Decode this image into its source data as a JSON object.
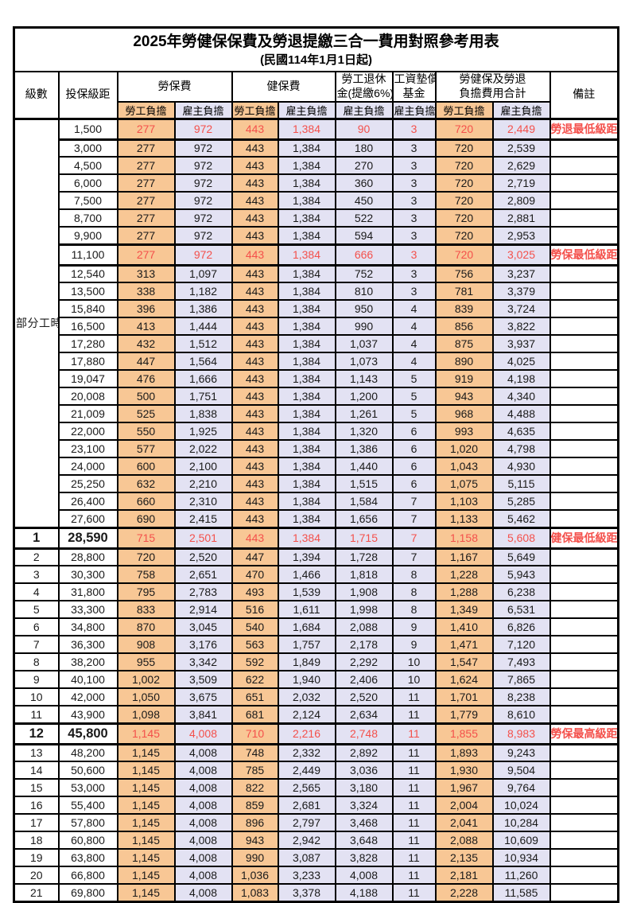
{
  "title": "2025年勞健保保費及勞退提繳三合一費用對照參考用表",
  "subtitle": "(民國114年1月1日起)",
  "colors": {
    "accent_orange": "#F8C795",
    "accent_lavender": "#E3E2F3",
    "highlight_red": "#F4504B"
  },
  "header": {
    "level": "級數",
    "bracket": "投保級距",
    "labor_fee": "勞保費",
    "health_fee": "健保費",
    "pension_line1": "勞工退休",
    "pension_line2": "金(提繳6%)",
    "wage_fund_line1": "工資墊償",
    "wage_fund_line2": "基金",
    "total_line1": "勞健保及勞退",
    "total_line2": "負擔費用合計",
    "note": "備註",
    "employee": "勞工負擔",
    "employer": "雇主負擔"
  },
  "part_time_label": "部分工時",
  "part_time_rowspan": 23,
  "rows": [
    {
      "level": "",
      "bracket": "1,500",
      "values": [
        "277",
        "972",
        "443",
        "1,384",
        "90",
        "3",
        "720",
        "2,449"
      ],
      "note": "勞退最低級距",
      "highlight": true,
      "emphasis": false
    },
    {
      "level": "",
      "bracket": "3,000",
      "values": [
        "277",
        "972",
        "443",
        "1,384",
        "180",
        "3",
        "720",
        "2,539"
      ],
      "note": "",
      "highlight": false,
      "emphasis": false
    },
    {
      "level": "",
      "bracket": "4,500",
      "values": [
        "277",
        "972",
        "443",
        "1,384",
        "270",
        "3",
        "720",
        "2,629"
      ],
      "note": "",
      "highlight": false,
      "emphasis": false
    },
    {
      "level": "",
      "bracket": "6,000",
      "values": [
        "277",
        "972",
        "443",
        "1,384",
        "360",
        "3",
        "720",
        "2,719"
      ],
      "note": "",
      "highlight": false,
      "emphasis": false
    },
    {
      "level": "",
      "bracket": "7,500",
      "values": [
        "277",
        "972",
        "443",
        "1,384",
        "450",
        "3",
        "720",
        "2,809"
      ],
      "note": "",
      "highlight": false,
      "emphasis": false
    },
    {
      "level": "",
      "bracket": "8,700",
      "values": [
        "277",
        "972",
        "443",
        "1,384",
        "522",
        "3",
        "720",
        "2,881"
      ],
      "note": "",
      "highlight": false,
      "emphasis": false
    },
    {
      "level": "",
      "bracket": "9,900",
      "values": [
        "277",
        "972",
        "443",
        "1,384",
        "594",
        "3",
        "720",
        "2,953"
      ],
      "note": "",
      "highlight": false,
      "emphasis": false
    },
    {
      "level": "",
      "bracket": "11,100",
      "values": [
        "277",
        "972",
        "443",
        "1,384",
        "666",
        "3",
        "720",
        "3,025"
      ],
      "note": "勞保最低級距",
      "highlight": true,
      "emphasis": false
    },
    {
      "level": "",
      "bracket": "12,540",
      "values": [
        "313",
        "1,097",
        "443",
        "1,384",
        "752",
        "3",
        "756",
        "3,237"
      ],
      "note": "",
      "highlight": false,
      "emphasis": false
    },
    {
      "level": "",
      "bracket": "13,500",
      "values": [
        "338",
        "1,182",
        "443",
        "1,384",
        "810",
        "3",
        "781",
        "3,379"
      ],
      "note": "",
      "highlight": false,
      "emphasis": false
    },
    {
      "level": "",
      "bracket": "15,840",
      "values": [
        "396",
        "1,386",
        "443",
        "1,384",
        "950",
        "4",
        "839",
        "3,724"
      ],
      "note": "",
      "highlight": false,
      "emphasis": false
    },
    {
      "level": "",
      "bracket": "16,500",
      "values": [
        "413",
        "1,444",
        "443",
        "1,384",
        "990",
        "4",
        "856",
        "3,822"
      ],
      "note": "",
      "highlight": false,
      "emphasis": false
    },
    {
      "level": "",
      "bracket": "17,280",
      "values": [
        "432",
        "1,512",
        "443",
        "1,384",
        "1,037",
        "4",
        "875",
        "3,937"
      ],
      "note": "",
      "highlight": false,
      "emphasis": false
    },
    {
      "level": "",
      "bracket": "17,880",
      "values": [
        "447",
        "1,564",
        "443",
        "1,384",
        "1,073",
        "4",
        "890",
        "4,025"
      ],
      "note": "",
      "highlight": false,
      "emphasis": false
    },
    {
      "level": "",
      "bracket": "19,047",
      "values": [
        "476",
        "1,666",
        "443",
        "1,384",
        "1,143",
        "5",
        "919",
        "4,198"
      ],
      "note": "",
      "highlight": false,
      "emphasis": false
    },
    {
      "level": "",
      "bracket": "20,008",
      "values": [
        "500",
        "1,751",
        "443",
        "1,384",
        "1,200",
        "5",
        "943",
        "4,340"
      ],
      "note": "",
      "highlight": false,
      "emphasis": false
    },
    {
      "level": "",
      "bracket": "21,009",
      "values": [
        "525",
        "1,838",
        "443",
        "1,384",
        "1,261",
        "5",
        "968",
        "4,488"
      ],
      "note": "",
      "highlight": false,
      "emphasis": false
    },
    {
      "level": "",
      "bracket": "22,000",
      "values": [
        "550",
        "1,925",
        "443",
        "1,384",
        "1,320",
        "6",
        "993",
        "4,635"
      ],
      "note": "",
      "highlight": false,
      "emphasis": false
    },
    {
      "level": "",
      "bracket": "23,100",
      "values": [
        "577",
        "2,022",
        "443",
        "1,384",
        "1,386",
        "6",
        "1,020",
        "4,798"
      ],
      "note": "",
      "highlight": false,
      "emphasis": false
    },
    {
      "level": "",
      "bracket": "24,000",
      "values": [
        "600",
        "2,100",
        "443",
        "1,384",
        "1,440",
        "6",
        "1,043",
        "4,930"
      ],
      "note": "",
      "highlight": false,
      "emphasis": false
    },
    {
      "level": "",
      "bracket": "25,250",
      "values": [
        "632",
        "2,210",
        "443",
        "1,384",
        "1,515",
        "6",
        "1,075",
        "5,115"
      ],
      "note": "",
      "highlight": false,
      "emphasis": false
    },
    {
      "level": "",
      "bracket": "26,400",
      "values": [
        "660",
        "2,310",
        "443",
        "1,384",
        "1,584",
        "7",
        "1,103",
        "5,285"
      ],
      "note": "",
      "highlight": false,
      "emphasis": false
    },
    {
      "level": "",
      "bracket": "27,600",
      "values": [
        "690",
        "2,415",
        "443",
        "1,384",
        "1,656",
        "7",
        "1,133",
        "5,462"
      ],
      "note": "",
      "highlight": false,
      "emphasis": false
    },
    {
      "level": "1",
      "bracket": "28,590",
      "values": [
        "715",
        "2,501",
        "443",
        "1,384",
        "1,715",
        "7",
        "1,158",
        "5,608"
      ],
      "note": "健保最低級距",
      "highlight": true,
      "emphasis": true
    },
    {
      "level": "2",
      "bracket": "28,800",
      "values": [
        "720",
        "2,520",
        "447",
        "1,394",
        "1,728",
        "7",
        "1,167",
        "5,649"
      ],
      "note": "",
      "highlight": false,
      "emphasis": false
    },
    {
      "level": "3",
      "bracket": "30,300",
      "values": [
        "758",
        "2,651",
        "470",
        "1,466",
        "1,818",
        "8",
        "1,228",
        "5,943"
      ],
      "note": "",
      "highlight": false,
      "emphasis": false
    },
    {
      "level": "4",
      "bracket": "31,800",
      "values": [
        "795",
        "2,783",
        "493",
        "1,539",
        "1,908",
        "8",
        "1,288",
        "6,238"
      ],
      "note": "",
      "highlight": false,
      "emphasis": false
    },
    {
      "level": "5",
      "bracket": "33,300",
      "values": [
        "833",
        "2,914",
        "516",
        "1,611",
        "1,998",
        "8",
        "1,349",
        "6,531"
      ],
      "note": "",
      "highlight": false,
      "emphasis": false
    },
    {
      "level": "6",
      "bracket": "34,800",
      "values": [
        "870",
        "3,045",
        "540",
        "1,684",
        "2,088",
        "9",
        "1,410",
        "6,826"
      ],
      "note": "",
      "highlight": false,
      "emphasis": false
    },
    {
      "level": "7",
      "bracket": "36,300",
      "values": [
        "908",
        "3,176",
        "563",
        "1,757",
        "2,178",
        "9",
        "1,471",
        "7,120"
      ],
      "note": "",
      "highlight": false,
      "emphasis": false
    },
    {
      "level": "8",
      "bracket": "38,200",
      "values": [
        "955",
        "3,342",
        "592",
        "1,849",
        "2,292",
        "10",
        "1,547",
        "7,493"
      ],
      "note": "",
      "highlight": false,
      "emphasis": false
    },
    {
      "level": "9",
      "bracket": "40,100",
      "values": [
        "1,002",
        "3,509",
        "622",
        "1,940",
        "2,406",
        "10",
        "1,624",
        "7,865"
      ],
      "note": "",
      "highlight": false,
      "emphasis": false
    },
    {
      "level": "10",
      "bracket": "42,000",
      "values": [
        "1,050",
        "3,675",
        "651",
        "2,032",
        "2,520",
        "11",
        "1,701",
        "8,238"
      ],
      "note": "",
      "highlight": false,
      "emphasis": false
    },
    {
      "level": "11",
      "bracket": "43,900",
      "values": [
        "1,098",
        "3,841",
        "681",
        "2,124",
        "2,634",
        "11",
        "1,779",
        "8,610"
      ],
      "note": "",
      "highlight": false,
      "emphasis": false
    },
    {
      "level": "12",
      "bracket": "45,800",
      "values": [
        "1,145",
        "4,008",
        "710",
        "2,216",
        "2,748",
        "11",
        "1,855",
        "8,983"
      ],
      "note": "勞保最高級距",
      "highlight": true,
      "emphasis": true
    },
    {
      "level": "13",
      "bracket": "48,200",
      "values": [
        "1,145",
        "4,008",
        "748",
        "2,332",
        "2,892",
        "11",
        "1,893",
        "9,243"
      ],
      "note": "",
      "highlight": false,
      "emphasis": false
    },
    {
      "level": "14",
      "bracket": "50,600",
      "values": [
        "1,145",
        "4,008",
        "785",
        "2,449",
        "3,036",
        "11",
        "1,930",
        "9,504"
      ],
      "note": "",
      "highlight": false,
      "emphasis": false
    },
    {
      "level": "15",
      "bracket": "53,000",
      "values": [
        "1,145",
        "4,008",
        "822",
        "2,565",
        "3,180",
        "11",
        "1,967",
        "9,764"
      ],
      "note": "",
      "highlight": false,
      "emphasis": false
    },
    {
      "level": "16",
      "bracket": "55,400",
      "values": [
        "1,145",
        "4,008",
        "859",
        "2,681",
        "3,324",
        "11",
        "2,004",
        "10,024"
      ],
      "note": "",
      "highlight": false,
      "emphasis": false
    },
    {
      "level": "17",
      "bracket": "57,800",
      "values": [
        "1,145",
        "4,008",
        "896",
        "2,797",
        "3,468",
        "11",
        "2,041",
        "10,284"
      ],
      "note": "",
      "highlight": false,
      "emphasis": false
    },
    {
      "level": "18",
      "bracket": "60,800",
      "values": [
        "1,145",
        "4,008",
        "943",
        "2,942",
        "3,648",
        "11",
        "2,088",
        "10,609"
      ],
      "note": "",
      "highlight": false,
      "emphasis": false
    },
    {
      "level": "19",
      "bracket": "63,800",
      "values": [
        "1,145",
        "4,008",
        "990",
        "3,087",
        "3,828",
        "11",
        "2,135",
        "10,934"
      ],
      "note": "",
      "highlight": false,
      "emphasis": false
    },
    {
      "level": "20",
      "bracket": "66,800",
      "values": [
        "1,145",
        "4,008",
        "1,036",
        "3,233",
        "4,008",
        "11",
        "2,181",
        "11,260"
      ],
      "note": "",
      "highlight": false,
      "emphasis": false
    },
    {
      "level": "21",
      "bracket": "69,800",
      "values": [
        "1,145",
        "4,008",
        "1,083",
        "3,378",
        "4,188",
        "11",
        "2,228",
        "11,585"
      ],
      "note": "",
      "highlight": false,
      "emphasis": false
    }
  ]
}
